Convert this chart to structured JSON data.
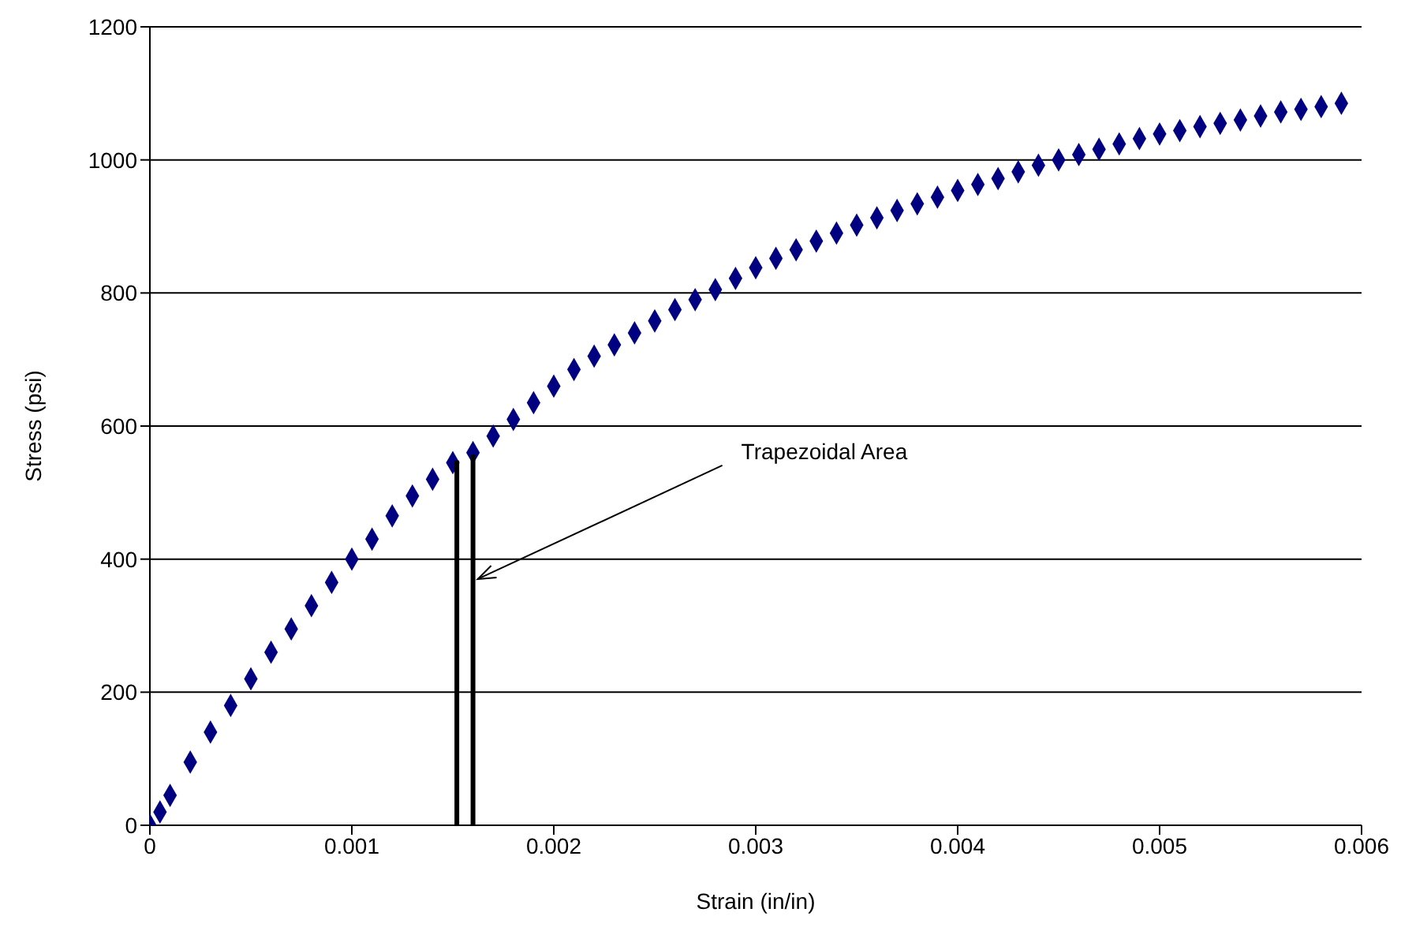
{
  "chart_data": {
    "type": "scatter",
    "xlabel": "Strain (in/in)",
    "ylabel": "Stress (psi)",
    "xlim": [
      0,
      0.006
    ],
    "xticks": [
      0,
      0.001,
      0.002,
      0.003,
      0.004,
      0.005,
      0.006
    ],
    "ylim": [
      0,
      1200
    ],
    "yticks": [
      0,
      200,
      400,
      600,
      800,
      1000,
      1200
    ],
    "grid": "y",
    "marker": "diamond",
    "series": [
      {
        "color": "#000080",
        "x": [
          0,
          5e-05,
          0.0001,
          0.0002,
          0.0003,
          0.0004,
          0.0005,
          0.0006,
          0.0007,
          0.0008,
          0.0009,
          0.001,
          0.0011,
          0.0012,
          0.0013,
          0.0014,
          0.0015,
          0.0016,
          0.0017,
          0.0018,
          0.0019,
          0.002,
          0.0021,
          0.0022,
          0.0023,
          0.0024,
          0.0025,
          0.0026,
          0.0027,
          0.0028,
          0.0029,
          0.003,
          0.0031,
          0.0032,
          0.0033,
          0.0034,
          0.0035,
          0.0036,
          0.0037,
          0.0038,
          0.0039,
          0.004,
          0.0041,
          0.0042,
          0.0043,
          0.0044,
          0.0045,
          0.0046,
          0.0047,
          0.0048,
          0.0049,
          0.005,
          0.0051,
          0.0052,
          0.0053,
          0.0054,
          0.0055,
          0.0056,
          0.0057,
          0.0058,
          0.0059
        ],
        "values": [
          0,
          20,
          45,
          95,
          140,
          180,
          220,
          260,
          295,
          330,
          365,
          400,
          430,
          465,
          495,
          520,
          545,
          560,
          585,
          610,
          635,
          660,
          685,
          705,
          722,
          740,
          758,
          775,
          790,
          805,
          822,
          838,
          852,
          865,
          878,
          890,
          902,
          913,
          924,
          934,
          944,
          954,
          963,
          972,
          982,
          992,
          1000,
          1008,
          1016,
          1024,
          1032,
          1039,
          1044,
          1050,
          1055,
          1060,
          1066,
          1072,
          1076,
          1080,
          1085
        ]
      },
      {
        "type": "line",
        "color": "#000000",
        "marker": "none",
        "x": [
          0.00152,
          0.00152
        ],
        "values": [
          0,
          548
        ]
      },
      {
        "type": "line",
        "color": "#000000",
        "marker": "none",
        "x": [
          0.0016,
          0.0016
        ],
        "values": [
          0,
          557
        ]
      }
    ],
    "annotations": [
      {
        "text": "Trapezoidal Area",
        "x": 0.0016,
        "y": 370
      }
    ]
  }
}
